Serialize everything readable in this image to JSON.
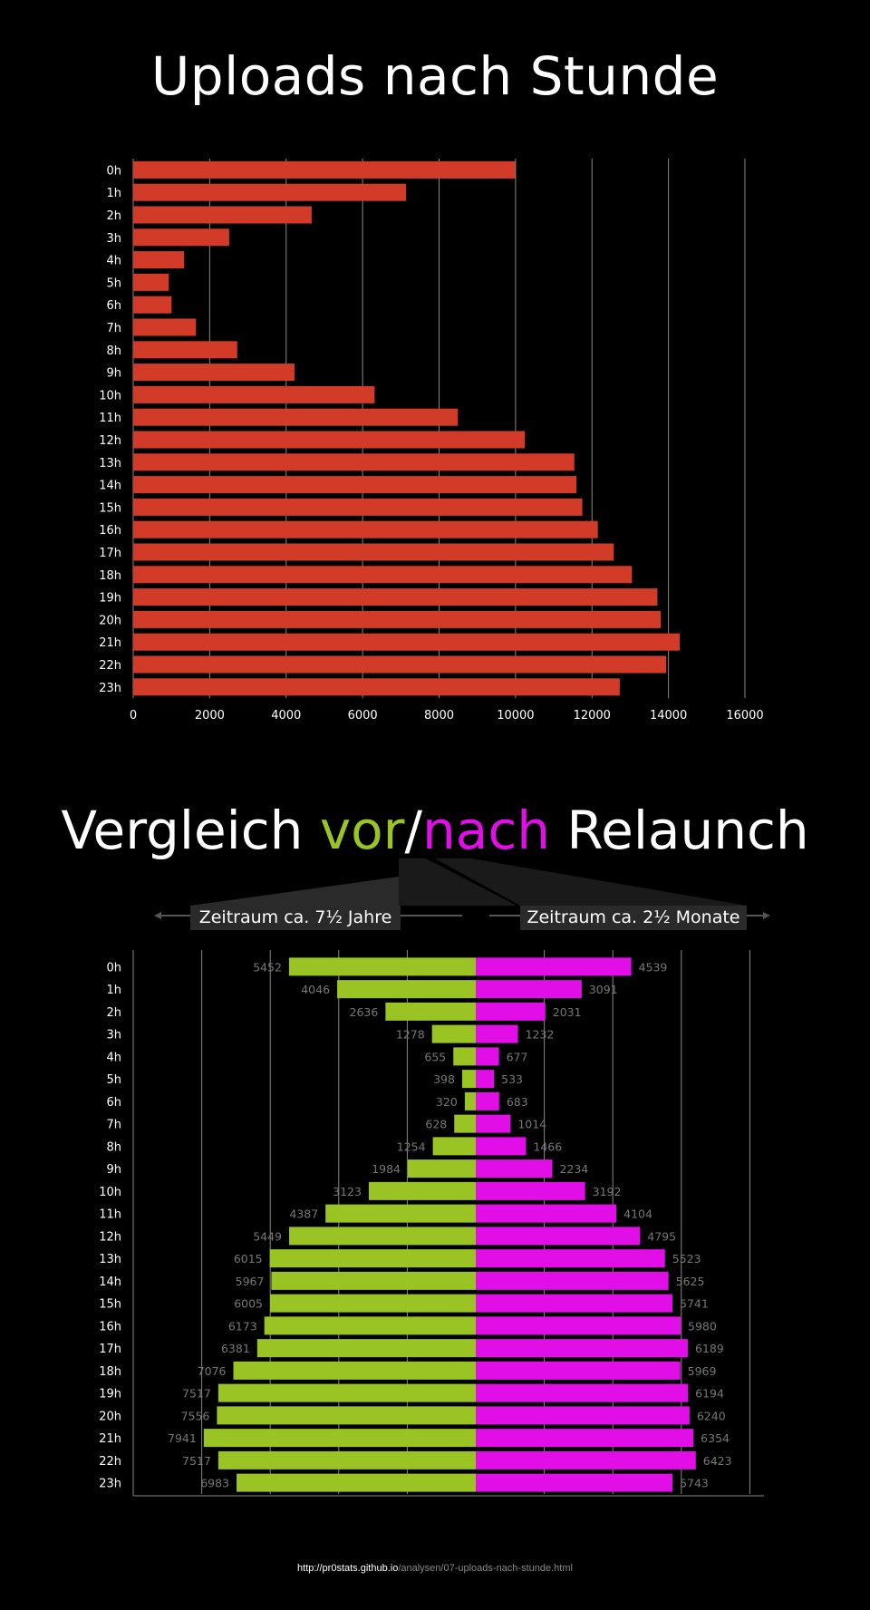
{
  "colors": {
    "background": "#000000",
    "bar_hourly": "#d13b27",
    "bar_before": "#99c423",
    "bar_after": "#e10ee8",
    "grid": "#888888",
    "value_label": "#777777"
  },
  "chart1": {
    "title": "Uploads nach Stunde"
  },
  "chart2": {
    "title_pre": "Vergleich ",
    "title_vor": "vor",
    "title_slash": "/",
    "title_nach": "nach",
    "title_post": " Relaunch",
    "label_before": "Zeitraum ca. 7½ Jahre",
    "label_after": "Zeitraum ca. 2½ Monate"
  },
  "footer": {
    "host": "http://pr0stats.github.io",
    "path": "/analysen/07-uploads-nach-stunde.html"
  },
  "chart_data": [
    {
      "type": "bar",
      "orientation": "horizontal",
      "title": "Uploads nach Stunde",
      "categories": [
        "0h",
        "1h",
        "2h",
        "3h",
        "4h",
        "5h",
        "6h",
        "7h",
        "8h",
        "9h",
        "10h",
        "11h",
        "12h",
        "13h",
        "14h",
        "15h",
        "16h",
        "17h",
        "18h",
        "19h",
        "20h",
        "21h",
        "22h",
        "23h"
      ],
      "values": [
        9991,
        7137,
        4667,
        2510,
        1332,
        931,
        1003,
        1642,
        2720,
        4218,
        6315,
        8491,
        10244,
        11538,
        11592,
        11746,
        12153,
        12570,
        13045,
        13711,
        13796,
        14295,
        13940,
        12726
      ],
      "xlim": [
        0,
        16000
      ],
      "xticks": [
        0,
        2000,
        4000,
        6000,
        8000,
        10000,
        12000,
        14000,
        16000
      ],
      "grid": true,
      "legend": "none"
    },
    {
      "type": "bar",
      "orientation": "horizontal-diverging",
      "title": "Vergleich vor/nach Relaunch",
      "categories": [
        "0h",
        "1h",
        "2h",
        "3h",
        "4h",
        "5h",
        "6h",
        "7h",
        "8h",
        "9h",
        "10h",
        "11h",
        "12h",
        "13h",
        "14h",
        "15h",
        "16h",
        "17h",
        "18h",
        "19h",
        "20h",
        "21h",
        "22h",
        "23h"
      ],
      "series": [
        {
          "name": "Zeitraum ca. 7½ Jahre",
          "values": [
            5452,
            4046,
            2636,
            1278,
            655,
            398,
            320,
            628,
            1254,
            1984,
            3123,
            4387,
            5449,
            6015,
            5967,
            6005,
            6173,
            6381,
            7076,
            7517,
            7556,
            7941,
            7517,
            6983
          ]
        },
        {
          "name": "Zeitraum ca. 2½ Monate",
          "values": [
            4539,
            3091,
            2031,
            1232,
            677,
            533,
            683,
            1014,
            1466,
            2234,
            3192,
            4104,
            4795,
            5523,
            5625,
            5741,
            5980,
            6189,
            5969,
            6194,
            6240,
            6354,
            6423,
            5743
          ]
        }
      ],
      "grid": true,
      "legend": "top"
    }
  ]
}
